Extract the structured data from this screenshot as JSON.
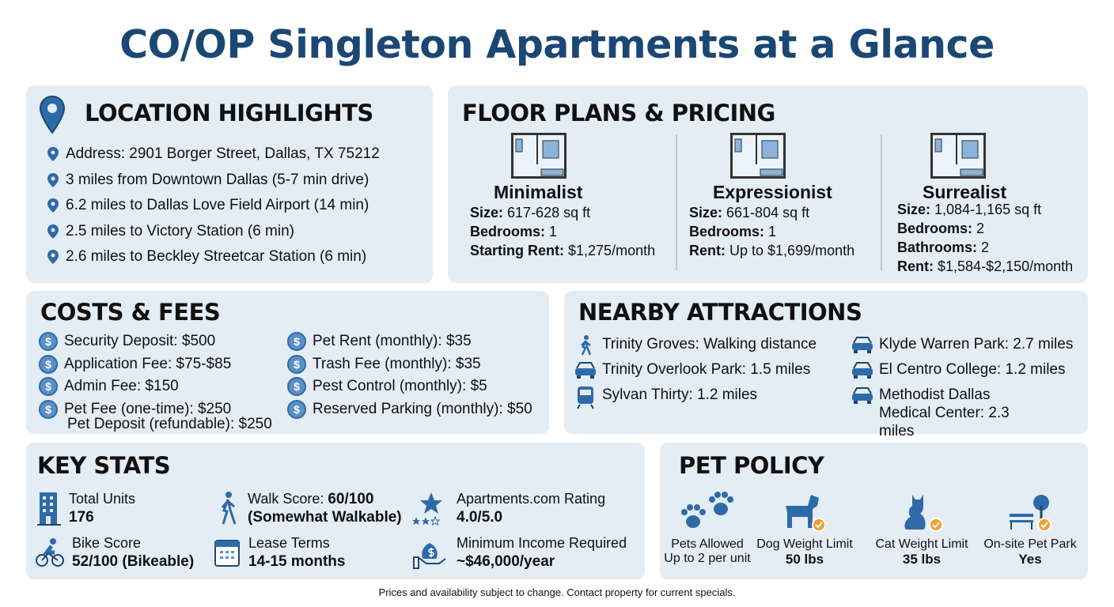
{
  "title": "CO/OP Singleton Apartments at a Glance",
  "colors": {
    "title": "#1b4775",
    "panel": "#e4ecf4",
    "icon": "#2f6aa8"
  },
  "location": {
    "heading": "LOCATION HIGHLIGHTS",
    "items": [
      "Address: 2901 Borger Street, Dallas, TX 75212",
      "3 miles from Downtown Dallas (5-7 min drive)",
      "6.2 miles to Dallas Love Field Airport (14 min)",
      "2.5 miles to Victory Station (6 min)",
      "2.6 miles to Beckley Streetcar Station (6 min)"
    ]
  },
  "floor_plans": {
    "heading": "FLOOR PLANS & PRICING",
    "plans": [
      {
        "name": "Minimalist",
        "lines": [
          [
            "Size:",
            "617-628 sq ft"
          ],
          [
            "Bedrooms:",
            "1"
          ],
          [
            "Starting Rent:",
            "$1,275/month"
          ]
        ]
      },
      {
        "name": "Expressionist",
        "lines": [
          [
            "Size:",
            "661-804 sq ft"
          ],
          [
            "Bedrooms:",
            "1"
          ],
          [
            "Rent:",
            "Up to $1,699/month"
          ]
        ]
      },
      {
        "name": "Surrealist",
        "lines": [
          [
            "Size:",
            "1,084-1,165 sq ft"
          ],
          [
            "Bedrooms:",
            "2"
          ],
          [
            "Bathrooms:",
            "2"
          ],
          [
            "Rent:",
            "$1,584-$2,150/month"
          ]
        ]
      }
    ]
  },
  "costs": {
    "heading": "COSTS & FEES",
    "dollar": "$",
    "left": [
      "Security Deposit: $500",
      "Application Fee: $75-$85",
      "Admin Fee: $150",
      "Pet Fee (one-time): $250"
    ],
    "extra": "Pet Deposit (refundable): $250",
    "right": [
      "Pet Rent (monthly): $35",
      "Trash Fee (monthly): $35",
      "Pest Control (monthly): $5",
      "Reserved Parking (monthly): $50"
    ]
  },
  "attractions": {
    "heading": "NEARBY ATTRACTIONS",
    "left": [
      {
        "icon": "walking-icon",
        "text": "Trinity Groves: Walking distance"
      },
      {
        "icon": "car-icon",
        "text": "Trinity Overlook Park: 1.5 miles"
      },
      {
        "icon": "train-icon",
        "text": "Sylvan Thirty: 1.2 miles"
      }
    ],
    "right": [
      {
        "icon": "car-icon",
        "text": "Klyde Warren Park: 2.7 miles"
      },
      {
        "icon": "car-icon",
        "text": "El Centro College: 1.2 miles"
      },
      {
        "icon": "car-icon",
        "text": "Methodist Dallas Medical Center: 2.3 miles"
      }
    ]
  },
  "key_stats": {
    "heading": "KEY STATS",
    "total_units": {
      "label": "Total Units",
      "value": "176"
    },
    "walk": {
      "label": "Walk Score: ",
      "score": "60/100",
      "value": "(Somewhat Walkable)"
    },
    "rating": {
      "label": "Apartments.com Rating",
      "value": "4.0/5.0"
    },
    "bike": {
      "label": "Bike Score",
      "value": "52/100 (Bikeable)"
    },
    "lease": {
      "label": "Lease Terms",
      "value": "14-15 months"
    },
    "income": {
      "label": "Minimum Income Required",
      "value": "~$46,000/year"
    }
  },
  "pet_policy": {
    "heading": "PET POLICY",
    "items": [
      {
        "label": "Pets Allowed",
        "value": "Up to 2 per unit"
      },
      {
        "label": "Dog Weight Limit",
        "value": "50 lbs"
      },
      {
        "label": "Cat Weight Limit",
        "value": "35 lbs"
      },
      {
        "label": "On-site Pet Park",
        "value": "Yes"
      }
    ]
  },
  "footer": "Prices and availability subject to change. Contact property for current specials."
}
